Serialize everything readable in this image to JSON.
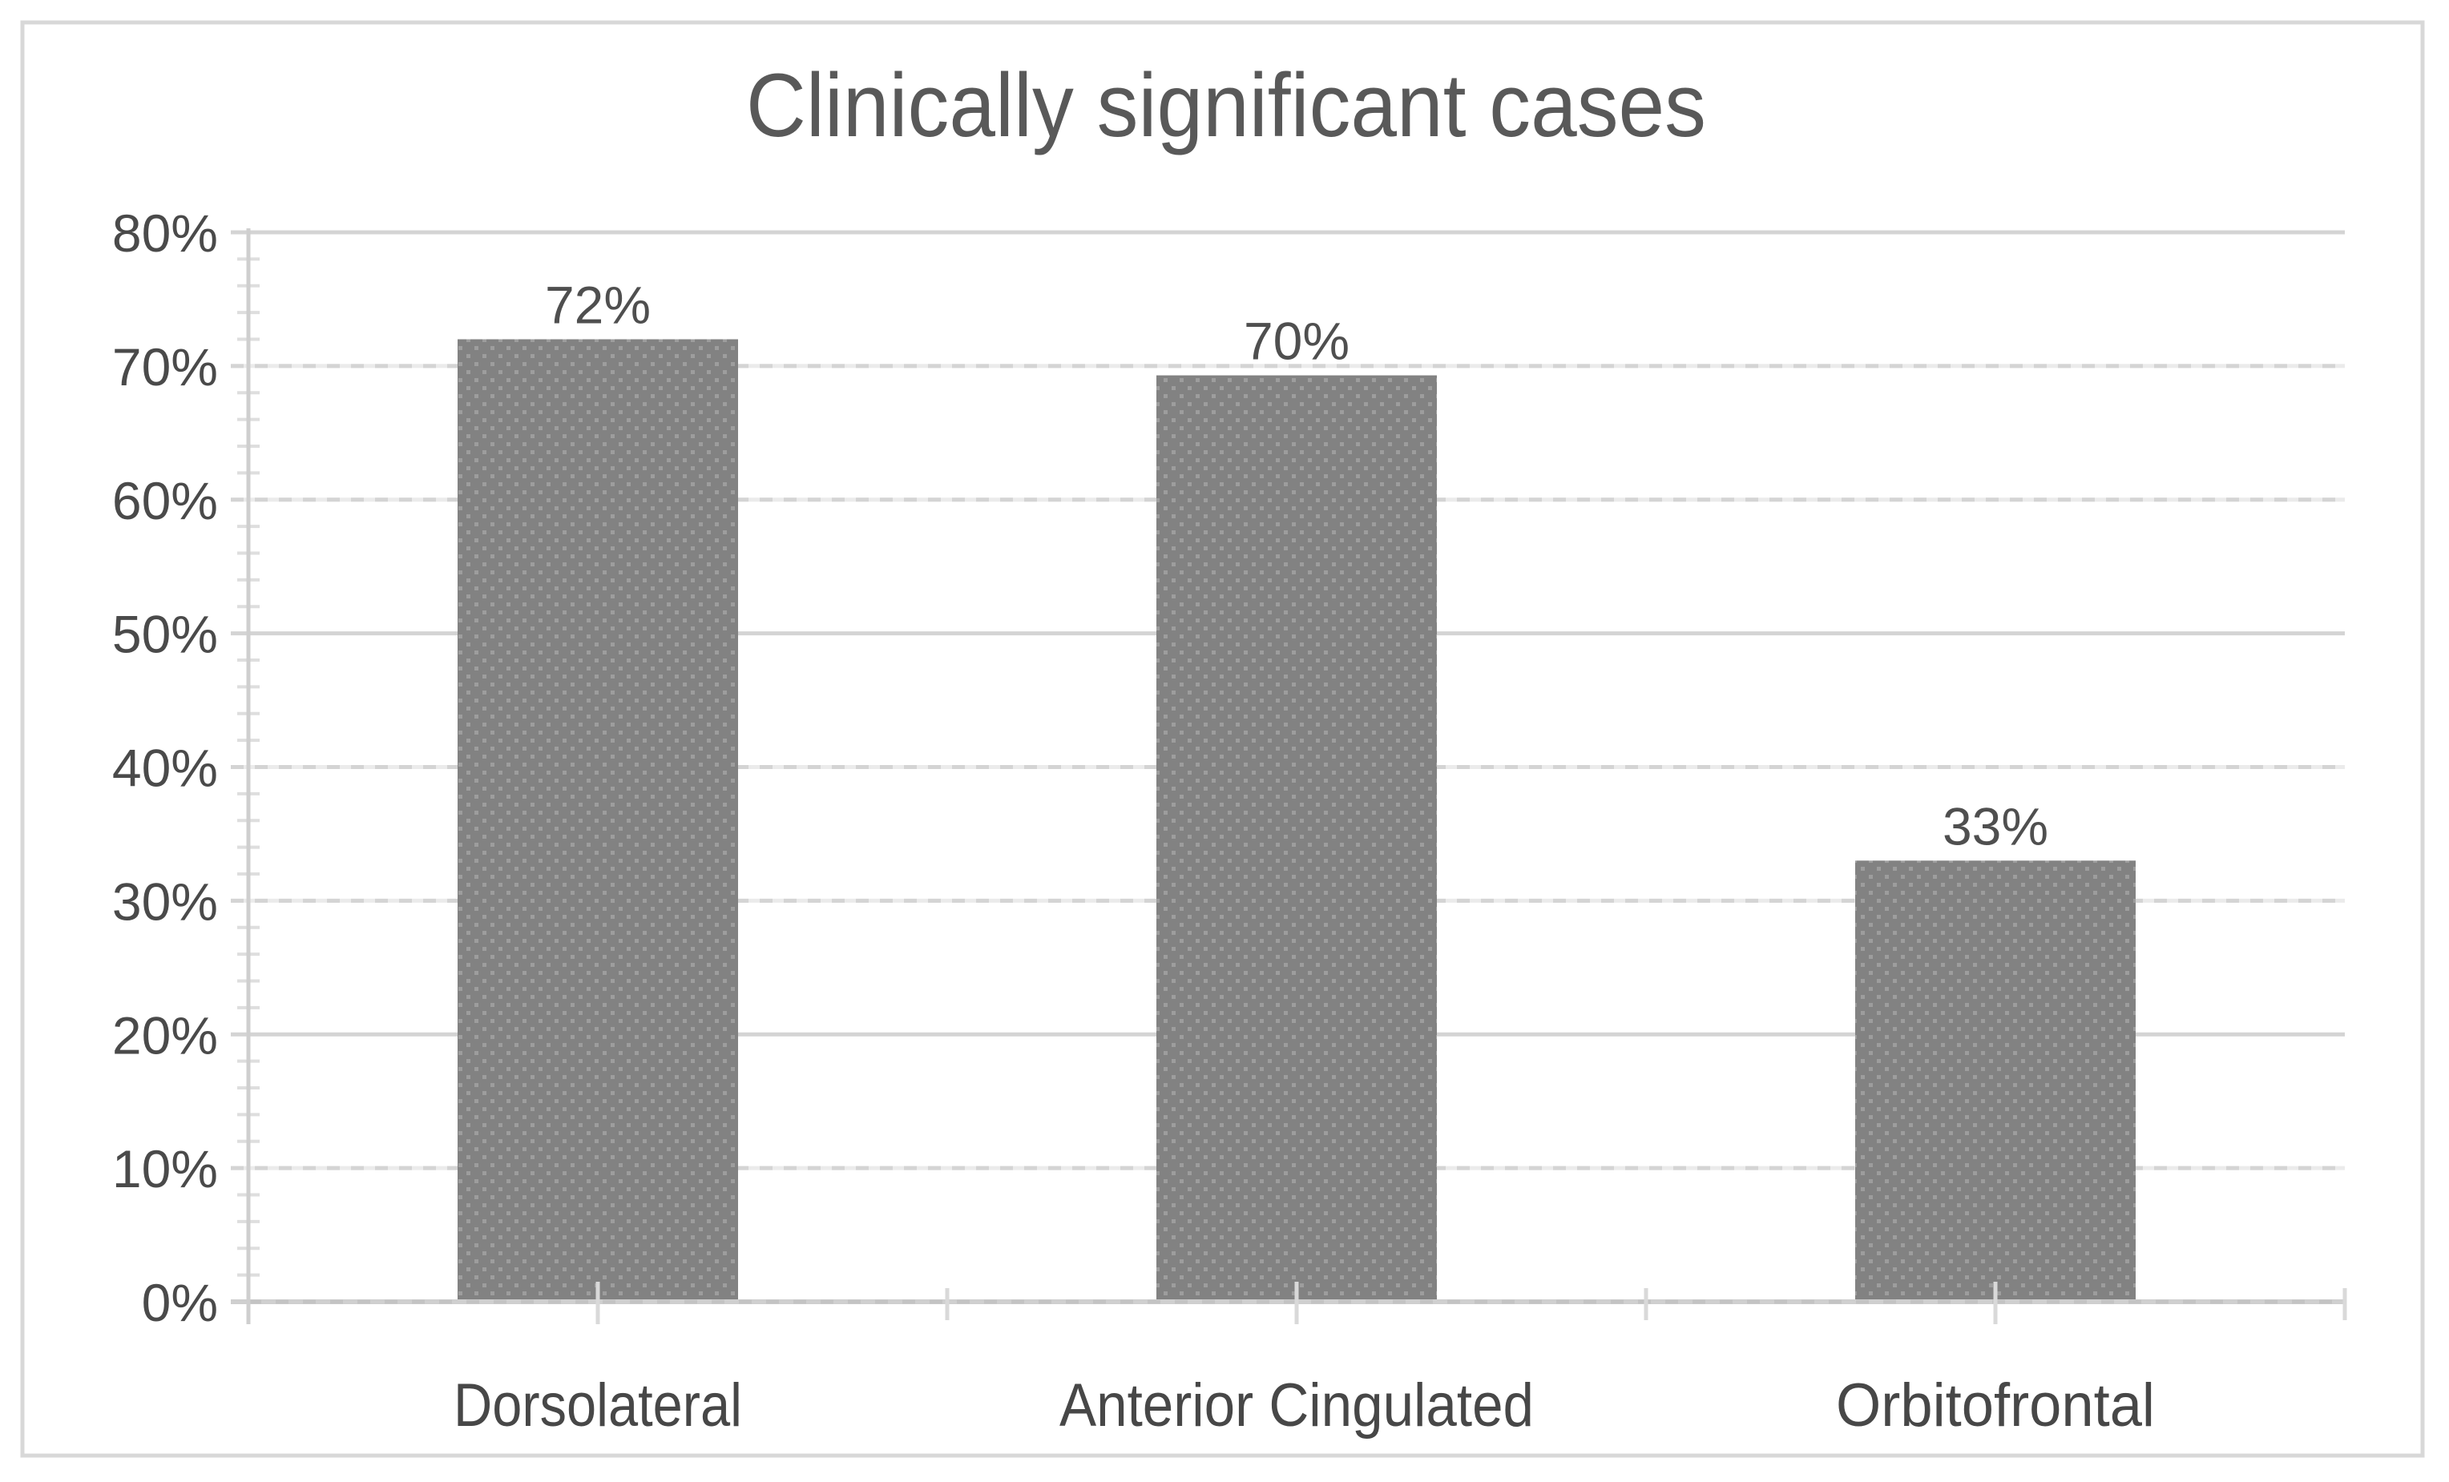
{
  "figure": {
    "background": "#ffffff",
    "border_color": "#d8d8d8"
  },
  "chart_data": {
    "type": "bar",
    "title": "Clinically significant cases",
    "categories": [
      "Dorsolateral",
      "Anterior Cingulated",
      "Orbitofrontal"
    ],
    "values": [
      72,
      70,
      33
    ],
    "data_labels": [
      "72%",
      "70%",
      "33%"
    ],
    "bar_drawn_values": [
      72,
      69.3,
      33
    ],
    "xlabel": "",
    "ylabel": "",
    "y_axis": {
      "tick_labels": [
        "0%",
        "10%",
        "20%",
        "30%",
        "40%",
        "50%",
        "60%",
        "70%",
        "80%"
      ],
      "tick_values": [
        0,
        10,
        20,
        30,
        40,
        50,
        60,
        70,
        80
      ],
      "min": 0,
      "max": 80,
      "major_step": 10,
      "minor_step": 2
    },
    "legend": "none",
    "grid": {
      "horizontal": true,
      "style": "dashed",
      "solid_at": [
        80,
        50,
        20
      ]
    },
    "colors": {
      "bar_fill": "#828282",
      "bar_dot": "#9d9d9d",
      "gridline": "#d4d4d4",
      "gridline_faint": "#ebebeb",
      "axis_line": "#cfcfcf",
      "axis_dash": "#c3c3c3",
      "title_text": "#595959",
      "tick_label_text": "#4a4a4a",
      "data_label_text": "#4f4f4f",
      "category_label_text": "#474747"
    }
  }
}
